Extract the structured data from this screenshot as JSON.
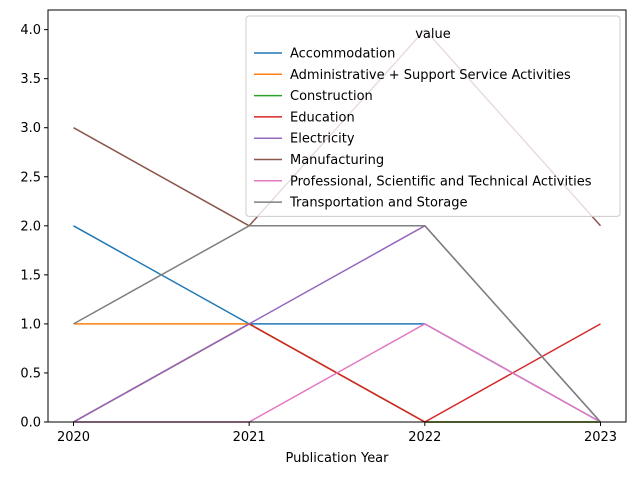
{
  "chart_data": {
    "type": "line",
    "x": [
      "2020",
      "2021",
      "2022",
      "2023"
    ],
    "xlabel": "Publication Year",
    "ylabel": "",
    "ylim": [
      0,
      4.2
    ],
    "yticks": [
      "0.0",
      "0.5",
      "1.0",
      "1.5",
      "2.0",
      "2.5",
      "3.0",
      "3.5",
      "4.0"
    ],
    "grid": false,
    "legend": {
      "title": "value",
      "placement": "top-right"
    },
    "series": [
      {
        "name": "Accommodation",
        "color": "#1f77b4",
        "values": [
          2,
          1,
          1,
          0
        ]
      },
      {
        "name": "Administrative + Support Service Activities",
        "color": "#ff7f0e",
        "values": [
          1,
          1,
          0,
          0
        ]
      },
      {
        "name": "Construction",
        "color": "#2ca02c",
        "values": [
          0,
          1,
          0,
          0
        ]
      },
      {
        "name": "Education",
        "color": "#d62728",
        "values": [
          0,
          1,
          0,
          1
        ]
      },
      {
        "name": "Electricity",
        "color": "#9467bd",
        "values": [
          0,
          1,
          2,
          0
        ]
      },
      {
        "name": "Manufacturing",
        "color": "#8c564b",
        "values": [
          3,
          2,
          4,
          2
        ]
      },
      {
        "name": "Professional, Scientific and Technical Activities",
        "color": "#e377c2",
        "values": [
          0,
          0,
          1,
          0
        ]
      },
      {
        "name": "Transportation and Storage",
        "color": "#7f7f7f",
        "values": [
          1,
          2,
          2,
          0
        ]
      }
    ]
  }
}
